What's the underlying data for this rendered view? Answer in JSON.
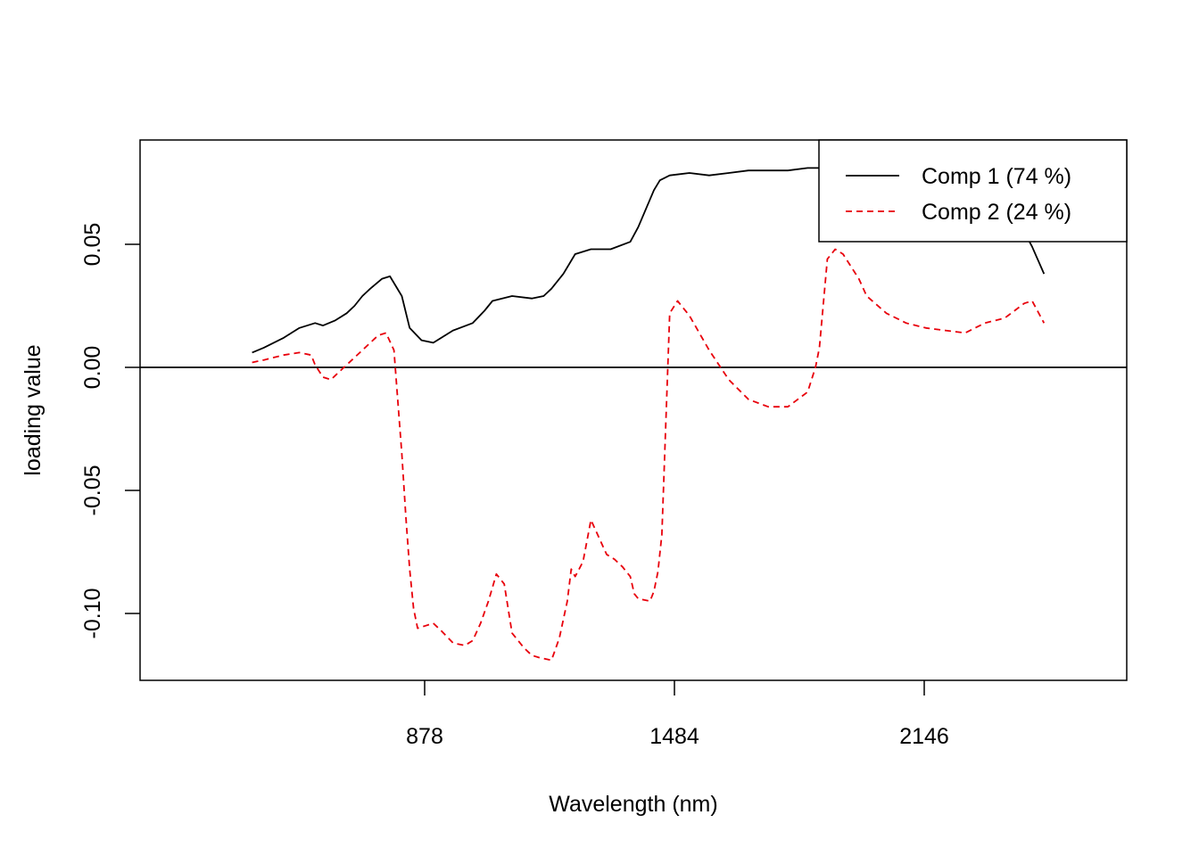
{
  "chart_data": {
    "type": "line",
    "xlabel": "Wavelength (nm)",
    "ylabel": "loading value",
    "xlim": [
      350,
      2500
    ],
    "ylim": [
      -0.128,
      0.092
    ],
    "x_ticks": [
      "878",
      "1484",
      "2146"
    ],
    "y_ticks": [
      "0.05",
      "0.00",
      "-0.05",
      "-0.10"
    ],
    "zero_line": true,
    "legend_position": "top-right",
    "series": [
      {
        "name": "Comp 1 (74 %)",
        "color": "#000000",
        "dash": "solid",
        "x": [
          440,
          470,
          520,
          560,
          600,
          620,
          650,
          680,
          700,
          720,
          740,
          770,
          790,
          820,
          840,
          870,
          900,
          950,
          1000,
          1030,
          1050,
          1100,
          1150,
          1180,
          1200,
          1230,
          1260,
          1300,
          1350,
          1400,
          1420,
          1460,
          1475,
          1500,
          1550,
          1600,
          1650,
          1700,
          1750,
          1800,
          1850,
          1900,
          1950,
          2000,
          2050,
          2100,
          2150,
          2200,
          2250,
          2300,
          2350,
          2400,
          2420,
          2450
        ],
        "y": [
          0.006,
          0.008,
          0.012,
          0.016,
          0.018,
          0.017,
          0.019,
          0.022,
          0.025,
          0.029,
          0.032,
          0.036,
          0.037,
          0.029,
          0.016,
          0.011,
          0.01,
          0.015,
          0.018,
          0.023,
          0.027,
          0.029,
          0.028,
          0.029,
          0.032,
          0.038,
          0.046,
          0.048,
          0.048,
          0.051,
          0.057,
          0.072,
          0.076,
          0.078,
          0.079,
          0.078,
          0.079,
          0.08,
          0.08,
          0.08,
          0.081,
          0.081,
          0.082,
          0.082,
          0.081,
          0.08,
          0.079,
          0.077,
          0.073,
          0.069,
          0.064,
          0.055,
          0.049,
          0.038
        ]
      },
      {
        "name": "Comp 2 (24 %)",
        "color": "#e8000b",
        "dash": "dashed",
        "x": [
          440,
          470,
          520,
          560,
          590,
          600,
          620,
          640,
          660,
          700,
          740,
          760,
          780,
          800,
          820,
          830,
          840,
          850,
          860,
          880,
          900,
          920,
          950,
          980,
          1000,
          1020,
          1040,
          1060,
          1080,
          1100,
          1110,
          1130,
          1150,
          1170,
          1200,
          1220,
          1240,
          1250,
          1260,
          1280,
          1300,
          1340,
          1360,
          1380,
          1400,
          1410,
          1420,
          1450,
          1460,
          1470,
          1480,
          1500,
          1520,
          1550,
          1600,
          1650,
          1700,
          1750,
          1800,
          1850,
          1870,
          1880,
          1900,
          1920,
          1940,
          1980,
          2000,
          2050,
          2100,
          2150,
          2200,
          2250,
          2300,
          2350,
          2400,
          2420,
          2450
        ],
        "y": [
          0.002,
          0.003,
          0.005,
          0.006,
          0.005,
          0.001,
          -0.004,
          -0.005,
          -0.002,
          0.004,
          0.01,
          0.013,
          0.014,
          0.007,
          -0.035,
          -0.06,
          -0.082,
          -0.098,
          -0.106,
          -0.105,
          -0.104,
          -0.107,
          -0.112,
          -0.113,
          -0.111,
          -0.104,
          -0.095,
          -0.084,
          -0.088,
          -0.108,
          -0.11,
          -0.114,
          -0.117,
          -0.118,
          -0.119,
          -0.11,
          -0.095,
          -0.082,
          -0.085,
          -0.079,
          -0.062,
          -0.076,
          -0.078,
          -0.081,
          -0.085,
          -0.092,
          -0.094,
          -0.095,
          -0.091,
          -0.083,
          -0.068,
          0.022,
          0.027,
          0.021,
          0.007,
          -0.005,
          -0.013,
          -0.016,
          -0.016,
          -0.01,
          0.0,
          0.008,
          0.044,
          0.048,
          0.046,
          0.036,
          0.029,
          0.022,
          0.018,
          0.016,
          0.015,
          0.014,
          0.018,
          0.02,
          0.026,
          0.027,
          0.018
        ]
      }
    ]
  }
}
